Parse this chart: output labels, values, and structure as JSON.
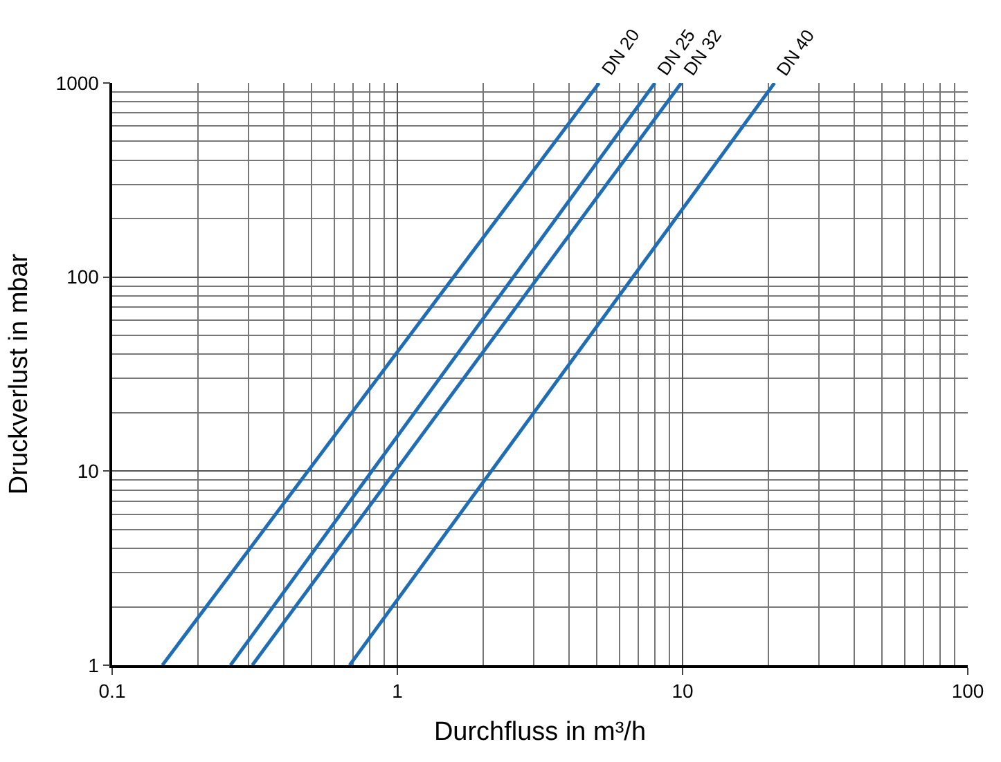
{
  "chart_data": {
    "type": "line",
    "xlabel": "Durchfluss in m³/h",
    "ylabel": "Druckverlust in mbar",
    "log": "xy",
    "grid": true,
    "legend": false,
    "marker": "none",
    "line_style": "solid",
    "xlim": [
      0.1,
      100
    ],
    "xticks": [
      0.1,
      1,
      10,
      100
    ],
    "ylim": [
      1,
      1000
    ],
    "yticks": [
      1,
      10,
      100,
      1000
    ],
    "series": [
      {
        "name": "DN 20",
        "color": "#1f6db5",
        "x": [
          0.15,
          5.1
        ],
        "values": [
          1,
          1000
        ]
      },
      {
        "name": "DN 25",
        "color": "#1f6db5",
        "x": [
          0.26,
          8.0
        ],
        "values": [
          1,
          1000
        ]
      },
      {
        "name": "DN 32",
        "color": "#1f6db5",
        "x": [
          0.31,
          9.9
        ],
        "values": [
          1,
          1000
        ]
      },
      {
        "name": "DN 40",
        "color": "#1f6db5",
        "x": [
          0.68,
          21
        ],
        "values": [
          1,
          1000
        ]
      }
    ]
  }
}
